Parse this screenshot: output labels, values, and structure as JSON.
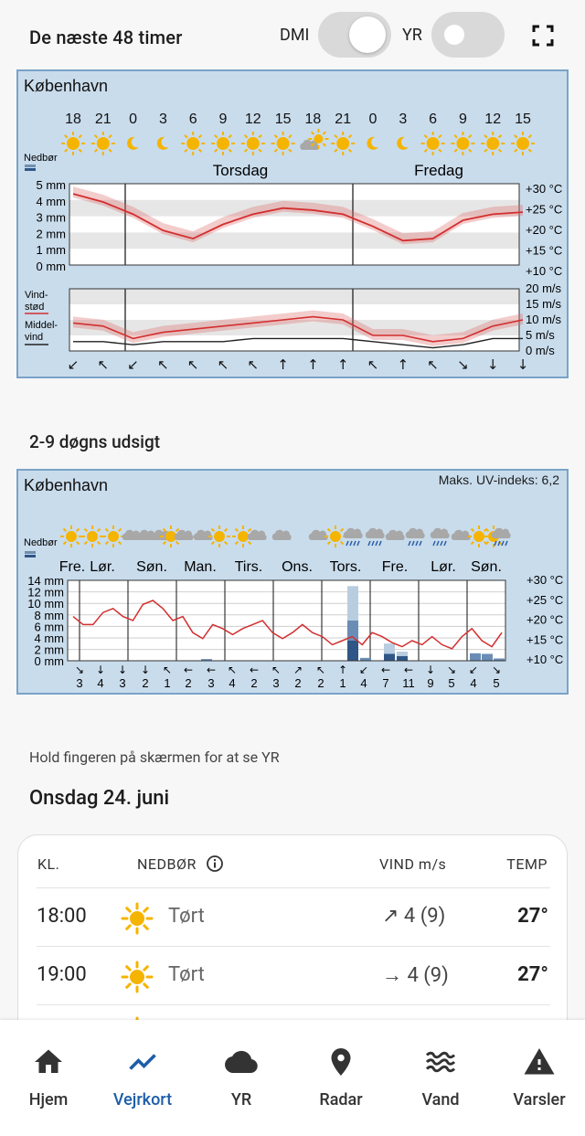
{
  "header": {
    "title": "De næste 48 timer",
    "toggle1_label": "DMI",
    "toggle2_label": "YR"
  },
  "panel48": {
    "city": "København",
    "hours": [
      "18",
      "21",
      "0",
      "3",
      "6",
      "9",
      "12",
      "15",
      "18",
      "21",
      "0",
      "3",
      "6",
      "9",
      "12",
      "15"
    ],
    "icons": [
      "sun",
      "sun",
      "moon",
      "moon",
      "sun",
      "sun",
      "sun",
      "sun",
      "cloud-sun",
      "sun",
      "moon",
      "moon",
      "sun",
      "sun",
      "sun",
      "sun"
    ],
    "days": [
      "Torsdag",
      "Fredag"
    ],
    "precip_label": "Nedbør",
    "precip_ticks": [
      "5 mm",
      "4 mm",
      "3 mm",
      "2 mm",
      "1 mm",
      "0 mm"
    ],
    "temp_ticks": [
      "+30 °C",
      "+25 °C",
      "+20 °C",
      "+15 °C",
      "+10 °C"
    ],
    "wind_ticks": [
      "20 m/s",
      "15 m/s",
      "10 m/s",
      "5 m/s",
      "0 m/s"
    ],
    "gust_label_1": "Vind-",
    "gust_label_2": "stød",
    "mean_label_1": "Middel-",
    "mean_label_2": "vind",
    "wind_arrows": [
      "↙",
      "↖",
      "↙",
      "↖",
      "↖",
      "↖",
      "↖",
      "↑",
      "↑",
      "↑",
      "↖",
      "↑",
      "↖",
      "↘",
      "↓",
      "↓"
    ]
  },
  "chart_data": [
    {
      "type": "line",
      "title": "",
      "series": [
        {
          "name": "",
          "x": [
            18,
            21,
            0,
            3,
            6,
            9,
            12,
            15,
            18,
            21,
            0,
            3,
            6,
            9,
            12,
            15
          ],
          "values": [
            27.5,
            25.5,
            22.5,
            18.5,
            16.5,
            20,
            22.5,
            24,
            23.5,
            22.5,
            19.5,
            16,
            16.5,
            21,
            22.5,
            23
          ]
        }
      ],
      "ylim": [
        10,
        30
      ]
    },
    {
      "type": "line",
      "title": "",
      "series": [
        {
          "name": "Vindstød",
          "values": [
            9,
            8,
            4,
            6,
            7,
            8,
            9,
            10,
            11,
            10,
            5,
            5,
            3,
            4,
            8,
            10
          ]
        },
        {
          "name": "Middelvind",
          "values": [
            3,
            3,
            2,
            3,
            3,
            3,
            4,
            4,
            4,
            4,
            3,
            2,
            1,
            2,
            4,
            4
          ]
        }
      ],
      "ylim": [
        0,
        20
      ]
    },
    {
      "type": "line",
      "title": "",
      "series": [
        {
          "name": "",
          "values": [
            21,
            19,
            19,
            22,
            23,
            21,
            20,
            24,
            25,
            23,
            20,
            21,
            17,
            15.5,
            19,
            18,
            16.5,
            18,
            19,
            20,
            17,
            15.5,
            17,
            19,
            17,
            16,
            14,
            15,
            16,
            14,
            17,
            16,
            14.5,
            13.5,
            15,
            14,
            16,
            14,
            13,
            16,
            18,
            15,
            13.5,
            17
          ]
        }
      ],
      "ylim": [
        10,
        30
      ]
    }
  ],
  "panel9": {
    "city": "København",
    "uv": "Maks. UV-indeks: 6,2",
    "precip_label": "Nedbør",
    "days": [
      "Fre.",
      "Lør.",
      "Søn.",
      "Man.",
      "Tirs.",
      "Ons.",
      "Tors.",
      "Fre.",
      "Lør.",
      "Søn."
    ],
    "precip_ticks": [
      "14 mm",
      "12 mm",
      "10 mm",
      "8 mm",
      "6 mm",
      "4 mm",
      "2 mm",
      "0 mm"
    ],
    "temp_ticks": [
      "+30 °C",
      "+25 °C",
      "+20 °C",
      "+15 °C",
      "+10 °C"
    ],
    "wind_speeds": [
      "3",
      "4",
      "3",
      "2",
      "1",
      "2",
      "3",
      "4",
      "2",
      "3",
      "2",
      "2",
      "1",
      "4",
      "7",
      "11",
      "9",
      "5",
      "4",
      "5"
    ],
    "wind_arrows": [
      "↘",
      "↓",
      "↓",
      "↓",
      "↖",
      "←",
      "←",
      "↖",
      "←",
      "↖",
      "↗",
      "↖",
      "↑",
      "↙",
      "←",
      "←",
      "↓",
      "↘",
      "↙",
      "↘"
    ]
  },
  "sections": {
    "nine_day_title": "2-9 døgns udsigt",
    "hint": "Hold fingeren på skærmen for at se YR",
    "day_title": "Onsdag 24. juni"
  },
  "table": {
    "col_time": "KL.",
    "col_precip": "NEDBØR",
    "col_wind": "VIND m/s",
    "col_temp": "TEMP",
    "rows": [
      {
        "time": "18:00",
        "precip": "Tørt",
        "wind": "↗ 4 (9)",
        "temp": "27°"
      },
      {
        "time": "19:00",
        "precip": "Tørt",
        "wind": "→ 4 (9)",
        "temp": "27°"
      }
    ]
  },
  "nav": [
    {
      "label": "Hjem",
      "icon": "home-icon"
    },
    {
      "label": "Vejrkort",
      "icon": "chart-icon"
    },
    {
      "label": "YR",
      "icon": "cloud-icon"
    },
    {
      "label": "Radar",
      "icon": "pin-icon"
    },
    {
      "label": "Vand",
      "icon": "waves-icon"
    },
    {
      "label": "Varsler",
      "icon": "warning-icon"
    }
  ],
  "colors": {
    "accent": "#1d5ea8",
    "panel_bg": "#c9dcec",
    "temp_line": "#d32f2f",
    "sun": "#f5b400"
  }
}
